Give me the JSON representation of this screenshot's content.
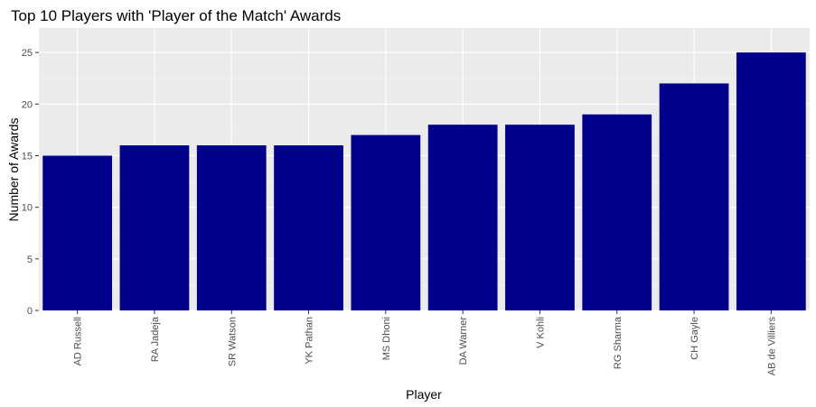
{
  "chart_data": {
    "type": "bar",
    "title": "Top 10 Players with 'Player of the Match' Awards",
    "xlabel": "Player",
    "ylabel": "Number of Awards",
    "categories": [
      "AD Russell",
      "RA Jadeja",
      "SR Watson",
      "YK Pathan",
      "MS Dhoni",
      "DA Warner",
      "V Kohli",
      "RG Sharma",
      "CH Gayle",
      "AB de Villiers"
    ],
    "values": [
      15,
      16,
      16,
      16,
      17,
      18,
      18,
      19,
      22,
      25
    ],
    "ylim": [
      0,
      26.5
    ],
    "yticks": [
      0,
      5,
      10,
      15,
      20,
      25
    ],
    "grid": true,
    "colors": {
      "bar": "#00008b",
      "panel": "#ebebeb",
      "grid_major": "#ffffff",
      "grid_minor": "#f5f5f5",
      "tick_text": "#4d4d4d",
      "tick_mark": "#333333"
    }
  }
}
